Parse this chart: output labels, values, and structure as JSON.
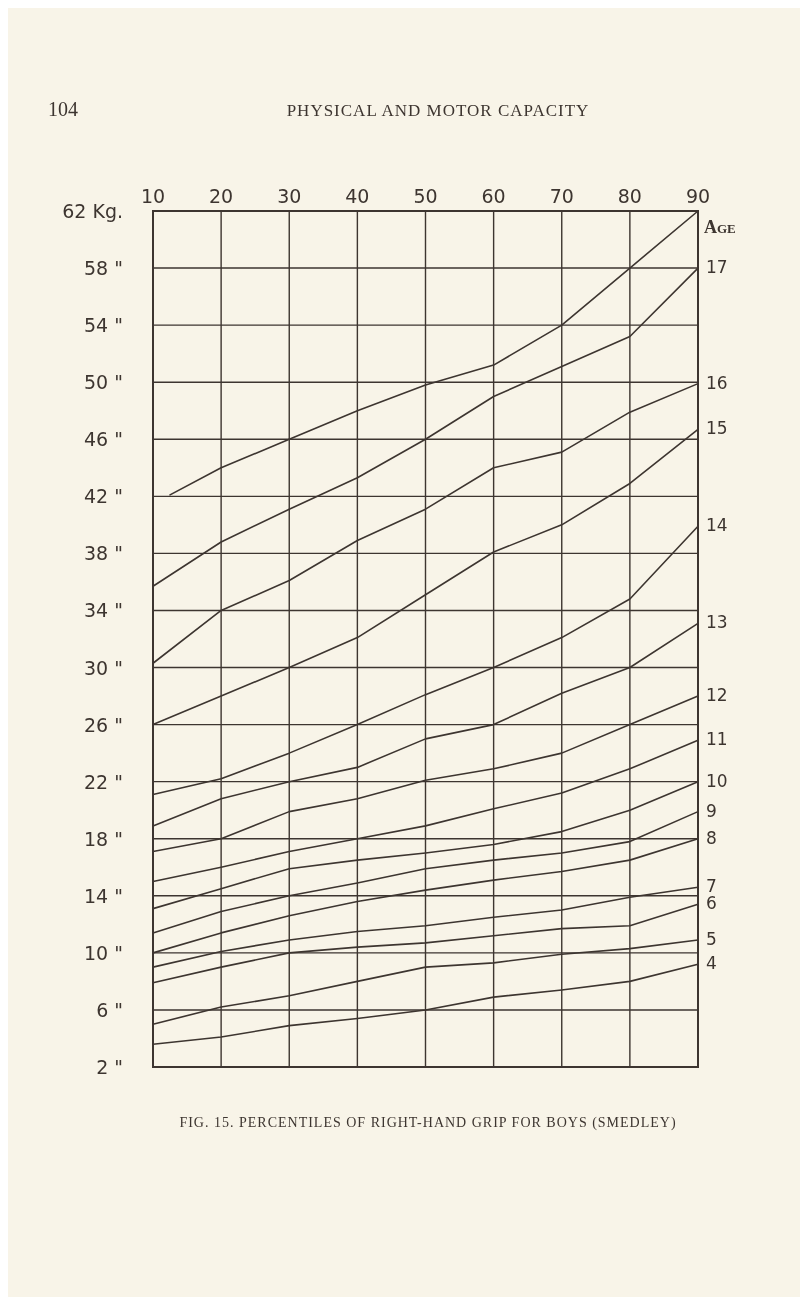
{
  "chart_data": {
    "type": "line",
    "title": "FIG. 15. PERCENTILES OF RIGHT-HAND GRIP FOR BOYS (SMEDLEY)",
    "annotations": [
      "104",
      "PHYSICAL AND MOTOR CAPACITY"
    ],
    "legend_title": "Age",
    "x": [
      10,
      20,
      30,
      40,
      50,
      60,
      70,
      80,
      90
    ],
    "xlim": [
      10,
      90
    ],
    "xticks": [
      10,
      20,
      30,
      40,
      50,
      60,
      70,
      80,
      90
    ],
    "ylim": [
      2,
      62
    ],
    "yticks": [
      {
        "value": 62,
        "label": "62 Kg."
      },
      {
        "value": 58,
        "label": "58 \""
      },
      {
        "value": 54,
        "label": "54 \""
      },
      {
        "value": 50,
        "label": "50 \""
      },
      {
        "value": 46,
        "label": "46 \""
      },
      {
        "value": 42,
        "label": "42 \""
      },
      {
        "value": 38,
        "label": "38 \""
      },
      {
        "value": 34,
        "label": "34 \""
      },
      {
        "value": 30,
        "label": "30 \""
      },
      {
        "value": 26,
        "label": "26 \""
      },
      {
        "value": 22,
        "label": "22 \""
      },
      {
        "value": 18,
        "label": "18 \""
      },
      {
        "value": 14,
        "label": "14 \""
      },
      {
        "value": 10,
        "label": "10 \""
      },
      {
        "value": 6,
        "label": "6 \""
      },
      {
        "value": 2,
        "label": "2 \""
      }
    ],
    "grid": true,
    "legend": "right",
    "marker": "none",
    "line_style": "solid",
    "series": [
      {
        "color": "#3d3530",
        "x": [
          12.5,
          20,
          30,
          40,
          50,
          60,
          70,
          80,
          90
        ],
        "values": [
          42.1,
          44.0,
          46.0,
          48.0,
          49.8,
          51.2,
          54.0,
          58.0,
          62.0
        ]
      },
      {
        "name": "17",
        "color": "#3d3530",
        "values": [
          35.7,
          38.8,
          41.1,
          43.3,
          46.0,
          49.0,
          51.1,
          53.2,
          58.0
        ]
      },
      {
        "name": "16",
        "color": "#3d3530",
        "values": [
          30.3,
          34.0,
          36.1,
          38.9,
          41.1,
          44.0,
          45.1,
          47.9,
          49.9
        ]
      },
      {
        "name": "15",
        "color": "#3d3530",
        "values": [
          26.0,
          28.0,
          30.0,
          32.1,
          35.1,
          38.1,
          40.0,
          42.9,
          46.7
        ]
      },
      {
        "name": "14",
        "color": "#3d3530",
        "values": [
          21.1,
          22.2,
          24.0,
          26.0,
          28.1,
          30.0,
          32.1,
          34.8,
          39.9
        ]
      },
      {
        "name": "13",
        "color": "#3d3530",
        "values": [
          18.9,
          20.8,
          22.0,
          23.0,
          25.0,
          26.0,
          28.2,
          30.0,
          33.1
        ]
      },
      {
        "name": "12",
        "color": "#3d3530",
        "values": [
          17.1,
          18.0,
          19.9,
          20.8,
          22.1,
          22.9,
          24.0,
          26.0,
          28.0
        ]
      },
      {
        "name": "11",
        "color": "#3d3530",
        "values": [
          15.0,
          16.0,
          17.1,
          18.0,
          18.9,
          20.1,
          21.2,
          22.9,
          24.9
        ]
      },
      {
        "name": "10",
        "color": "#3d3530",
        "values": [
          13.1,
          14.5,
          15.9,
          16.5,
          17.0,
          17.6,
          18.5,
          20.0,
          22.0
        ]
      },
      {
        "name": "9",
        "color": "#3d3530",
        "values": [
          11.4,
          12.9,
          14.0,
          14.9,
          15.9,
          16.5,
          17.0,
          17.8,
          19.9
        ]
      },
      {
        "name": "8",
        "color": "#3d3530",
        "values": [
          10.0,
          11.4,
          12.6,
          13.6,
          14.4,
          15.1,
          15.7,
          16.5,
          18.0
        ]
      },
      {
        "name": "7",
        "color": "#3d3530",
        "values": [
          9.0,
          10.1,
          10.9,
          11.5,
          11.9,
          12.5,
          13.0,
          13.9,
          14.6
        ]
      },
      {
        "name": "6",
        "color": "#3d3530",
        "values": [
          7.9,
          9.0,
          10.0,
          10.4,
          10.7,
          11.2,
          11.7,
          11.9,
          13.4
        ]
      },
      {
        "name": "5",
        "color": "#3d3530",
        "values": [
          5.0,
          6.2,
          7.0,
          8.0,
          9.0,
          9.3,
          9.9,
          10.3,
          10.9
        ]
      },
      {
        "name": "4",
        "color": "#3d3530",
        "values": [
          3.6,
          4.1,
          4.9,
          5.4,
          6.0,
          6.9,
          7.4,
          8.0,
          9.2
        ]
      }
    ]
  }
}
